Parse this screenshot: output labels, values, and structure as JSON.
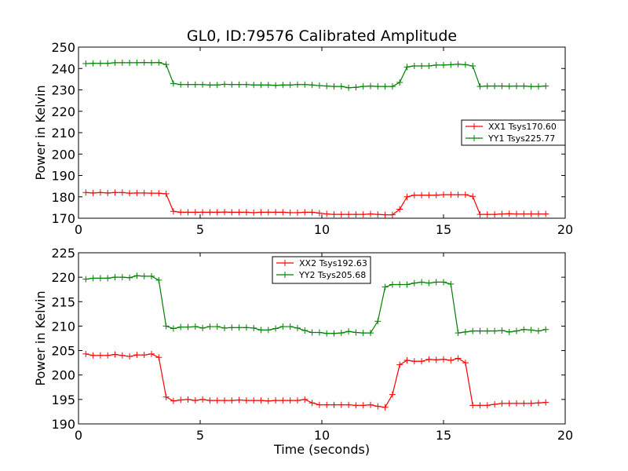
{
  "chart_data": [
    {
      "type": "line",
      "title": "GL0, ID:79576 Calibrated Amplitude",
      "xlabel": "",
      "ylabel": "Power in Kelvin",
      "xlim": [
        0,
        20
      ],
      "ylim": [
        170,
        250
      ],
      "xticks": [
        0,
        5,
        10,
        15,
        20
      ],
      "yticks": [
        170,
        180,
        190,
        200,
        210,
        220,
        230,
        240,
        250
      ],
      "grid": false,
      "legend_position": "center-right",
      "x": [
        0.3,
        0.6,
        0.9,
        1.2,
        1.5,
        1.8,
        2.1,
        2.4,
        2.7,
        3.0,
        3.3,
        3.6,
        3.9,
        4.2,
        4.5,
        4.8,
        5.1,
        5.4,
        5.7,
        6.0,
        6.3,
        6.6,
        6.9,
        7.2,
        7.5,
        7.8,
        8.1,
        8.4,
        8.7,
        9.0,
        9.3,
        9.6,
        9.9,
        10.2,
        10.5,
        10.8,
        11.1,
        11.4,
        11.7,
        12.0,
        12.3,
        12.6,
        12.9,
        13.2,
        13.5,
        13.8,
        14.1,
        14.4,
        14.7,
        15.0,
        15.3,
        15.6,
        15.9,
        16.2,
        16.5,
        16.8,
        17.1,
        17.4,
        17.7,
        18.0,
        18.3,
        18.6,
        18.9,
        19.2
      ],
      "series": [
        {
          "name": "XX1 Tsys170.60",
          "color": "#ff0000",
          "values": [
            182.0,
            181.8,
            182.0,
            181.8,
            182.0,
            182.0,
            181.7,
            181.8,
            181.8,
            181.7,
            181.7,
            181.4,
            173.2,
            172.8,
            172.8,
            172.8,
            172.8,
            172.8,
            172.8,
            172.9,
            172.8,
            172.8,
            172.8,
            172.6,
            172.8,
            172.8,
            172.8,
            172.8,
            172.6,
            172.6,
            172.8,
            172.8,
            172.4,
            172.0,
            171.8,
            171.8,
            171.8,
            171.8,
            171.8,
            172.0,
            171.8,
            171.6,
            171.6,
            174.2,
            180.0,
            180.8,
            180.8,
            180.8,
            180.8,
            181.0,
            181.0,
            181.0,
            181.0,
            180.2,
            171.8,
            171.8,
            171.8,
            172.0,
            172.1,
            172.0,
            172.0,
            172.0,
            172.0,
            172.0
          ]
        },
        {
          "name": "YY1 Tsys225.77",
          "color": "#008000",
          "values": [
            242.3,
            242.4,
            242.4,
            242.4,
            242.7,
            242.7,
            242.7,
            242.7,
            242.8,
            242.7,
            242.8,
            241.9,
            233.0,
            232.5,
            232.5,
            232.5,
            232.5,
            232.3,
            232.3,
            232.6,
            232.5,
            232.5,
            232.5,
            232.3,
            232.3,
            232.3,
            232.1,
            232.3,
            232.3,
            232.5,
            232.5,
            232.3,
            232.0,
            231.8,
            231.6,
            231.6,
            231.0,
            231.2,
            231.6,
            231.8,
            231.6,
            231.6,
            231.6,
            233.5,
            240.7,
            241.2,
            241.2,
            241.2,
            241.6,
            241.6,
            241.8,
            242.0,
            241.8,
            241.2,
            231.6,
            231.8,
            231.8,
            231.8,
            231.7,
            231.8,
            231.8,
            231.6,
            231.6,
            231.8
          ]
        }
      ]
    },
    {
      "type": "line",
      "title": "",
      "xlabel": "Time (seconds)",
      "ylabel": "Power in Kelvin",
      "xlim": [
        0,
        20
      ],
      "ylim": [
        190,
        225
      ],
      "xticks": [
        0,
        5,
        10,
        15,
        20
      ],
      "yticks": [
        190,
        195,
        200,
        205,
        210,
        215,
        220,
        225
      ],
      "grid": false,
      "legend_position": "top-center",
      "x": [
        0.3,
        0.6,
        0.9,
        1.2,
        1.5,
        1.8,
        2.1,
        2.4,
        2.7,
        3.0,
        3.3,
        3.6,
        3.9,
        4.2,
        4.5,
        4.8,
        5.1,
        5.4,
        5.7,
        6.0,
        6.3,
        6.6,
        6.9,
        7.2,
        7.5,
        7.8,
        8.1,
        8.4,
        8.7,
        9.0,
        9.3,
        9.6,
        9.9,
        10.2,
        10.5,
        10.8,
        11.1,
        11.4,
        11.7,
        12.0,
        12.3,
        12.6,
        12.9,
        13.2,
        13.5,
        13.8,
        14.1,
        14.4,
        14.7,
        15.0,
        15.3,
        15.6,
        15.9,
        16.2,
        16.5,
        16.8,
        17.1,
        17.4,
        17.7,
        18.0,
        18.3,
        18.6,
        18.9,
        19.2
      ],
      "series": [
        {
          "name": "XX2 Tsys192.63",
          "color": "#ff0000",
          "values": [
            204.3,
            204.0,
            204.0,
            204.0,
            204.2,
            204.0,
            203.8,
            204.1,
            204.1,
            204.3,
            203.6,
            195.5,
            194.7,
            194.9,
            195.0,
            194.8,
            195.0,
            194.8,
            194.8,
            194.8,
            194.8,
            194.9,
            194.8,
            194.8,
            194.8,
            194.7,
            194.8,
            194.8,
            194.8,
            194.8,
            195.0,
            194.3,
            193.9,
            193.9,
            193.9,
            193.9,
            193.9,
            193.8,
            193.8,
            193.9,
            193.6,
            193.4,
            196.0,
            202.1,
            203.0,
            202.8,
            202.8,
            203.2,
            203.1,
            203.2,
            203.0,
            203.4,
            202.5,
            193.8,
            193.8,
            193.8,
            194.0,
            194.2,
            194.2,
            194.2,
            194.2,
            194.2,
            194.3,
            194.4
          ]
        },
        {
          "name": "YY2 Tsys205.68",
          "color": "#008000",
          "values": [
            219.6,
            219.8,
            219.8,
            219.8,
            220.0,
            220.0,
            219.9,
            220.3,
            220.2,
            220.2,
            219.4,
            210.0,
            209.5,
            209.8,
            209.8,
            209.9,
            209.6,
            209.9,
            209.9,
            209.6,
            209.7,
            209.7,
            209.7,
            209.6,
            209.2,
            209.2,
            209.5,
            209.9,
            209.9,
            209.6,
            209.1,
            208.7,
            208.7,
            208.5,
            208.5,
            208.6,
            208.9,
            208.7,
            208.6,
            208.6,
            211.0,
            218.0,
            218.5,
            218.5,
            218.5,
            218.8,
            219.0,
            218.8,
            219.0,
            219.0,
            218.6,
            208.6,
            208.8,
            209.0,
            209.0,
            209.0,
            209.0,
            209.1,
            208.8,
            209.0,
            209.3,
            209.2,
            209.0,
            209.3
          ]
        }
      ]
    }
  ]
}
